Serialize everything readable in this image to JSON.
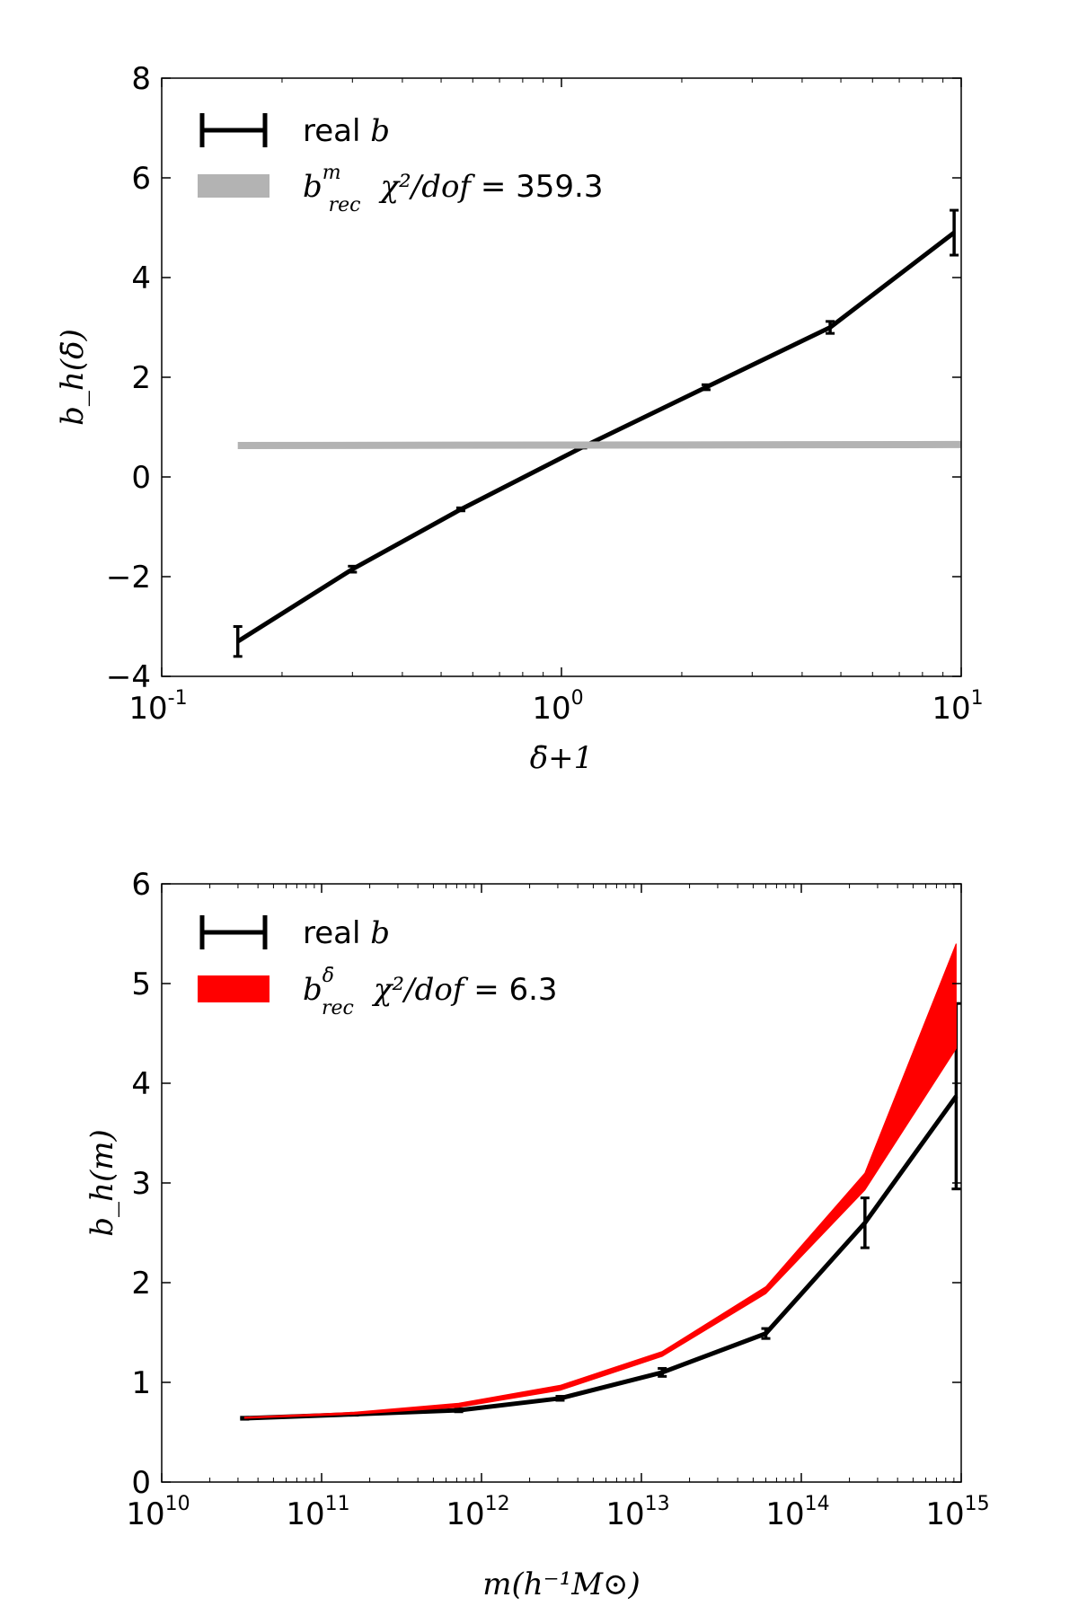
{
  "chart_data": [
    {
      "type": "line",
      "xlabel": "δ̄+1",
      "ylabel": "b_h(δ̄)",
      "xscale": "log",
      "xlim": [
        0.1,
        10
      ],
      "ylim": [
        -4,
        8
      ],
      "xticks": [
        {
          "value": 0.1,
          "base": "10",
          "exp": "-1"
        },
        {
          "value": 1,
          "base": "10",
          "exp": "0"
        },
        {
          "value": 10,
          "base": "10",
          "exp": "1"
        }
      ],
      "yticks": [
        {
          "value": -4,
          "label": "−4"
        },
        {
          "value": -2,
          "label": "−2"
        },
        {
          "value": 0,
          "label": "0"
        },
        {
          "value": 2,
          "label": "2"
        },
        {
          "value": 4,
          "label": "4"
        },
        {
          "value": 6,
          "label": "6"
        },
        {
          "value": 8,
          "label": "8"
        }
      ],
      "legend_position": "top-left",
      "series": [
        {
          "name": "real b",
          "legend_text": "real",
          "legend_math": "b",
          "color": "#000000",
          "x": [
            0.155,
            0.3,
            0.56,
            1.13,
            2.3,
            4.7,
            9.6
          ],
          "y": [
            -3.3,
            -1.85,
            -0.65,
            0.6,
            1.8,
            3.0,
            4.9
          ],
          "yerr": [
            0.3,
            0.06,
            0.03,
            0.02,
            0.05,
            0.12,
            0.45
          ]
        },
        {
          "name": "b_rec^m χ²/dof = 359.3",
          "legend_base": "b",
          "legend_sup": "m",
          "legend_sub": "rec",
          "legend_chi": "χ²/dof",
          "legend_value": " = 359.3",
          "color": "#b3b3b3",
          "x": [
            0.155,
            10
          ],
          "y": [
            0.63,
            0.65
          ]
        }
      ]
    },
    {
      "type": "line",
      "xlabel": "m(h⁻¹M⊙)",
      "ylabel": "b_h(m)",
      "xscale": "log",
      "xlim": [
        10000000000,
        1000000000000000
      ],
      "ylim": [
        0,
        6
      ],
      "xticks": [
        {
          "value": 10000000000,
          "base": "10",
          "exp": "10"
        },
        {
          "value": 100000000000,
          "base": "10",
          "exp": "11"
        },
        {
          "value": 1000000000000,
          "base": "10",
          "exp": "12"
        },
        {
          "value": 10000000000000,
          "base": "10",
          "exp": "13"
        },
        {
          "value": 100000000000000,
          "base": "10",
          "exp": "14"
        },
        {
          "value": 1000000000000000,
          "base": "10",
          "exp": "15"
        }
      ],
      "yticks": [
        {
          "value": 0,
          "label": "0"
        },
        {
          "value": 1,
          "label": "1"
        },
        {
          "value": 2,
          "label": "2"
        },
        {
          "value": 3,
          "label": "3"
        },
        {
          "value": 4,
          "label": "4"
        },
        {
          "value": 5,
          "label": "5"
        },
        {
          "value": 6,
          "label": "6"
        }
      ],
      "legend_position": "top-left",
      "series": [
        {
          "name": "real b",
          "legend_text": "real",
          "legend_math": "b",
          "color": "#000000",
          "x": [
            33000000000,
            160000000000,
            720000000000,
            3100000000000,
            13500000000000,
            60000000000000,
            250000000000000,
            930000000000000
          ],
          "y": [
            0.64,
            0.68,
            0.72,
            0.84,
            1.1,
            1.49,
            2.6,
            3.87
          ],
          "yerr": [
            0.01,
            0.01,
            0.015,
            0.02,
            0.04,
            0.05,
            0.25,
            0.93
          ]
        },
        {
          "name": "b_rec^δ̄ χ²/dof = 6.3",
          "legend_base": "b",
          "legend_sup": "δ̄",
          "legend_sub": "rec",
          "legend_chi": "χ²/dof",
          "legend_value": " = 6.3",
          "color": "#ff0000",
          "band": true,
          "x": [
            33000000000,
            160000000000,
            720000000000,
            3100000000000,
            13500000000000,
            60000000000000,
            250000000000000,
            930000000000000
          ],
          "y_low": [
            0.64,
            0.68,
            0.75,
            0.92,
            1.26,
            1.89,
            2.93,
            4.35
          ],
          "y_high": [
            0.65,
            0.7,
            0.79,
            0.97,
            1.31,
            1.96,
            3.1,
            5.4
          ]
        }
      ]
    }
  ]
}
